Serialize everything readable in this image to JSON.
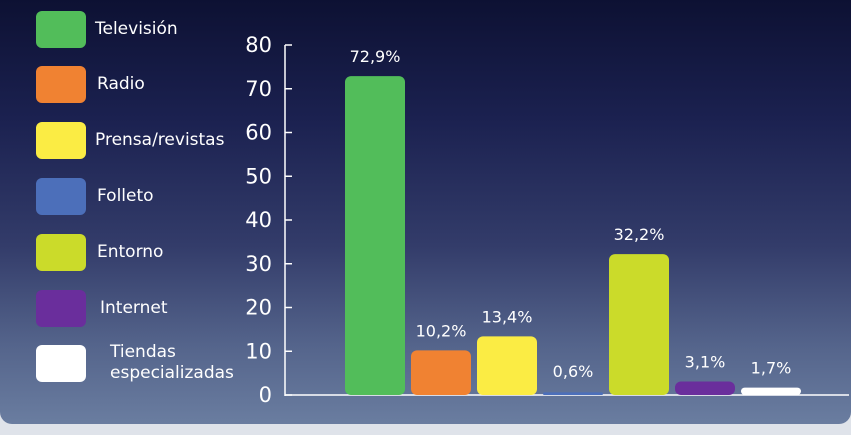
{
  "chart_data": {
    "type": "bar",
    "categories": [
      "Televisión",
      "Radio",
      "Prensa/revistas",
      "Folleto",
      "Entorno",
      "Internet",
      "Tiendas especializadas"
    ],
    "values": [
      72.9,
      10.2,
      13.4,
      0.6,
      32.2,
      3.1,
      1.7
    ],
    "data_labels": [
      "72,9%",
      "10,2%",
      "13,4%",
      "0,6%",
      "32,2%",
      "3,1%",
      "1,7%"
    ],
    "colors": [
      "#52bd5a",
      "#f08232",
      "#fbec44",
      "#4c6fba",
      "#cbdb2a",
      "#6a2e9c",
      "#ffffff"
    ],
    "legend": [
      {
        "label": "Televisión",
        "lines": [
          "Televisión"
        ],
        "color": "#52bd5a"
      },
      {
        "label": "Radio",
        "lines": [
          "Radio"
        ],
        "color": "#f08232"
      },
      {
        "label": "Prensa/revistas",
        "lines": [
          "Prensa/revistas"
        ],
        "color": "#fbec44"
      },
      {
        "label": "Folleto",
        "lines": [
          "Folleto"
        ],
        "color": "#4c6fba"
      },
      {
        "label": "Entorno",
        "lines": [
          "Entorno"
        ],
        "color": "#cbdb2a"
      },
      {
        "label": "Internet",
        "lines": [
          "Internet"
        ],
        "color": "#6a2e9c"
      },
      {
        "label": "Tiendas especializadas",
        "lines": [
          "Tiendas",
          "especializadas"
        ],
        "color": "#ffffff"
      }
    ],
    "y_ticks": [
      "0",
      "10",
      "20",
      "30",
      "40",
      "50",
      "60",
      "70",
      "80"
    ],
    "ylim": [
      0,
      80
    ],
    "title": "",
    "xlabel": "",
    "ylabel": "",
    "grid": false,
    "legend_placement": "left"
  }
}
